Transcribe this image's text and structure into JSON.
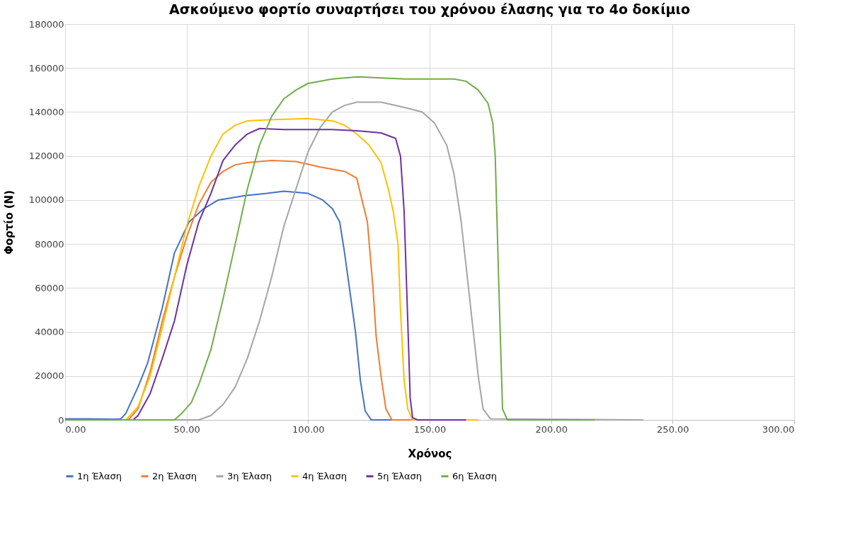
{
  "chart_data": {
    "type": "line",
    "title": "Ασκούμενο φορτίο συναρτήσει του χρόνου έλασης για το 4ο δοκίμιο",
    "xlabel": "Χρόνος",
    "ylabel": "Φορτίο (N)",
    "xlim": [
      0,
      300
    ],
    "xticks": [
      {
        "value": 0,
        "label": "0.00"
      },
      {
        "value": 50,
        "label": "50.00"
      },
      {
        "value": 100,
        "label": "100.00"
      },
      {
        "value": 150,
        "label": "150.00"
      },
      {
        "value": 200,
        "label": "200.00"
      },
      {
        "value": 250,
        "label": "250.00"
      },
      {
        "value": 300,
        "label": "300.00"
      }
    ],
    "ylim": [
      0,
      180000
    ],
    "yticks": [
      0,
      20000,
      40000,
      60000,
      80000,
      100000,
      120000,
      140000,
      160000,
      180000
    ],
    "grid": true,
    "legend": "bottom",
    "marker": "none",
    "line_style": "solid",
    "series": [
      {
        "name": "1η Έλαση",
        "color": "#4472c4",
        "x": [
          0,
          10,
          20,
          23,
          25,
          30,
          34,
          40,
          45,
          51,
          57,
          63,
          74,
          83,
          90,
          100,
          106,
          110,
          113,
          115,
          117,
          119.5,
          121.5,
          123.5,
          126,
          140
        ],
        "values": [
          500,
          500,
          300,
          500,
          3000,
          15000,
          26000,
          51000,
          76000,
          90000,
          96000,
          100000,
          102000,
          103000,
          104000,
          103000,
          100000,
          96000,
          90000,
          76000,
          60000,
          40000,
          18000,
          4000,
          0,
          0
        ]
      },
      {
        "name": "2η Έλαση",
        "color": "#ed7d31",
        "x": [
          0,
          26,
          30,
          35,
          40,
          45,
          50,
          55,
          60,
          65,
          70,
          75,
          85,
          95,
          105,
          115,
          120,
          121.5,
          124.4,
          126.7,
          128,
          130,
          132,
          134.5,
          170
        ],
        "values": [
          0,
          0,
          5000,
          22000,
          45000,
          65000,
          83000,
          98000,
          108000,
          113000,
          116000,
          117000,
          118000,
          117500,
          115000,
          113000,
          110000,
          103000,
          90000,
          60000,
          38000,
          20000,
          5000,
          0,
          0
        ]
      },
      {
        "name": "3η Έλαση",
        "color": "#a5a5a5",
        "x": [
          0,
          55,
          60,
          65,
          70,
          75,
          80,
          85,
          90,
          95,
          100,
          105,
          110,
          115,
          120,
          130,
          140,
          147,
          152,
          157,
          160,
          163,
          166,
          168,
          170,
          172,
          175,
          238
        ],
        "values": [
          0,
          0,
          2000,
          7000,
          15000,
          28000,
          45000,
          65000,
          88000,
          105000,
          122000,
          133000,
          140000,
          143000,
          144500,
          144500,
          142000,
          140000,
          135000,
          125000,
          112000,
          90000,
          60000,
          40000,
          20000,
          5000,
          500,
          0
        ]
      },
      {
        "name": "4η Έλαση",
        "color": "#ffc000",
        "x": [
          0,
          25,
          30,
          35,
          40,
          45,
          50,
          55,
          60,
          65,
          70,
          75,
          85,
          100,
          110,
          115,
          120,
          125,
          130,
          133,
          135,
          137,
          138,
          139.5,
          141,
          143,
          170
        ],
        "values": [
          0,
          0,
          6000,
          20000,
          42000,
          65000,
          88000,
          106000,
          120000,
          130000,
          134000,
          136000,
          136500,
          137000,
          136000,
          134000,
          130000,
          125000,
          117000,
          105000,
          95000,
          80000,
          50000,
          18000,
          5000,
          0,
          0
        ]
      },
      {
        "name": "5η Έλαση",
        "color": "#7030a0",
        "x": [
          0,
          28,
          30,
          35,
          40,
          45,
          50,
          55,
          60,
          65,
          70,
          75,
          80,
          90,
          100,
          110,
          120,
          130,
          136,
          138,
          139.5,
          141,
          142,
          143,
          145,
          165
        ],
        "values": [
          0,
          0,
          2000,
          12000,
          28000,
          45000,
          70000,
          90000,
          103000,
          118000,
          125000,
          130000,
          132500,
          132000,
          132000,
          132000,
          131500,
          130500,
          128000,
          120000,
          95000,
          45000,
          10000,
          1000,
          0,
          0
        ]
      },
      {
        "name": "6η Έλαση",
        "color": "#70ad47",
        "x": [
          0,
          45,
          48,
          52,
          55,
          60,
          65,
          70,
          75,
          80,
          85,
          90,
          95,
          100,
          110,
          120,
          130,
          140,
          160,
          165,
          170,
          174,
          176,
          177,
          178.5,
          180,
          182,
          218
        ],
        "values": [
          0,
          0,
          3000,
          8000,
          16000,
          32000,
          55000,
          80000,
          105000,
          125000,
          138000,
          146000,
          150000,
          153000,
          155000,
          156000,
          155500,
          155000,
          155000,
          154000,
          150000,
          144000,
          135000,
          120000,
          60000,
          5000,
          0,
          0
        ]
      }
    ]
  }
}
